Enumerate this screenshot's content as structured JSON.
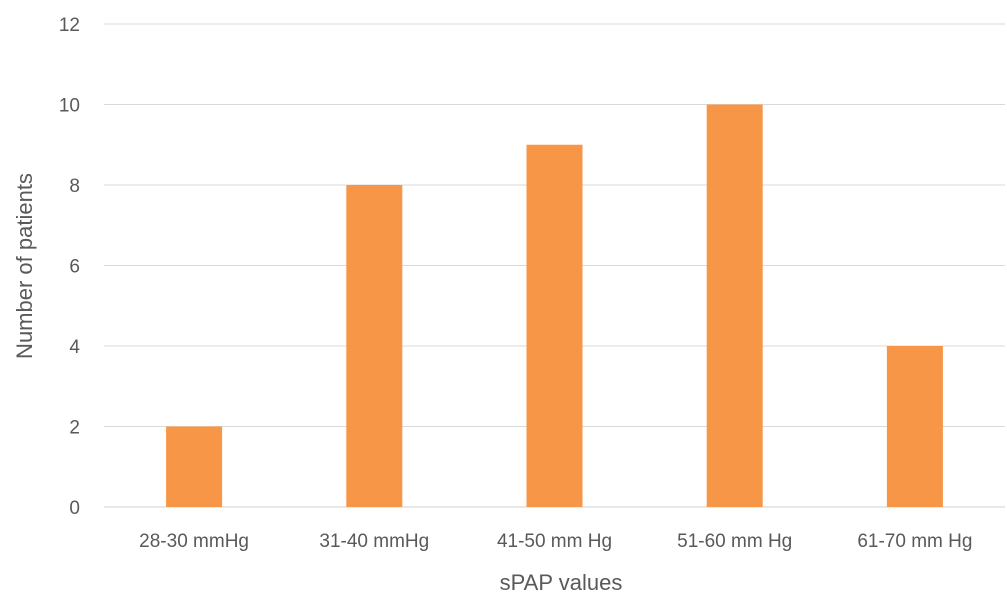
{
  "chart_data": {
    "type": "bar",
    "title": "",
    "xlabel": "sPAP values",
    "ylabel": "Number of patients",
    "categories": [
      "28-30 mmHg",
      "31-40 mmHg",
      "41-50 mm Hg",
      "51-60 mm Hg",
      "61-70 mm Hg"
    ],
    "values": [
      2,
      8,
      9,
      10,
      4
    ],
    "ylim": [
      0,
      12
    ],
    "yticks": [
      "0",
      "2",
      "4",
      "6",
      "8",
      "10",
      "12"
    ],
    "grid": true,
    "legend": "none",
    "bar_color": "#f79646",
    "grid_color": "#d9d9d9",
    "text_color": "#595959"
  }
}
